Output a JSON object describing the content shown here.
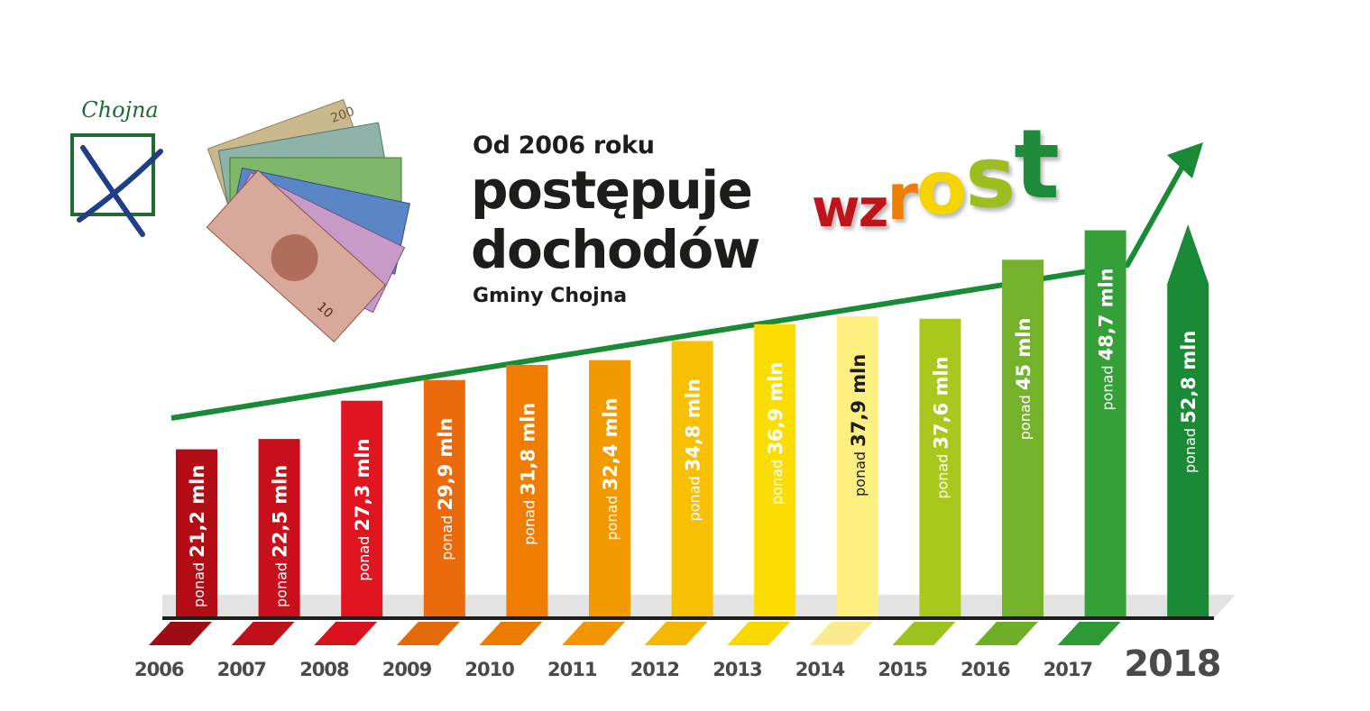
{
  "logo": {
    "text": "Chojna"
  },
  "heading": {
    "line1": "Od 2006 roku",
    "line2": "postępuje",
    "line3": "dochodów",
    "line4": "Gminy Chojna",
    "highlight_letters": [
      {
        "char": "w",
        "color": "#c0141b"
      },
      {
        "char": "z",
        "color": "#c0141b"
      },
      {
        "char": "r",
        "color": "#ef7d00"
      },
      {
        "char": "o",
        "color": "#f5d400"
      },
      {
        "char": "s",
        "color": "#9dbe1e"
      },
      {
        "char": "t",
        "color": "#1e8a3a"
      }
    ]
  },
  "chart_data": {
    "type": "bar",
    "categories": [
      "2006",
      "2007",
      "2008",
      "2009",
      "2010",
      "2011",
      "2012",
      "2013",
      "2014",
      "2015",
      "2016",
      "2017",
      "2018"
    ],
    "values": [
      21.2,
      22.5,
      27.3,
      29.9,
      31.8,
      32.4,
      34.8,
      36.9,
      37.9,
      37.6,
      45,
      48.7,
      52.8
    ],
    "value_prefix": "ponad",
    "value_labels": [
      "21,2 mln",
      "22,5 mln",
      "27,3 mln",
      "29,9 mln",
      "31,8 mln",
      "32,4 mln",
      "34,8 mln",
      "36,9 mln",
      "37,9 mln",
      "37,6 mln",
      "45 mln",
      "48,7 mln",
      "52,8 mln"
    ],
    "colors": [
      "#b20d15",
      "#c8101c",
      "#e2141f",
      "#ea6a0c",
      "#ef7d00",
      "#f39a00",
      "#f7c000",
      "#fbde00",
      "#fdf081",
      "#a9c81e",
      "#74b22b",
      "#36a038",
      "#1a8a36"
    ],
    "base_colors": [
      "#9e0b12",
      "#c0111a",
      "#d8121e",
      "#e26a0a",
      "#ec7c00",
      "#f19500",
      "#f5b800",
      "#f9d800",
      "#fbeb8e",
      "#9cc41c",
      "#6fae29",
      "#2f9a35"
    ],
    "arrow_color": "#1a8a36",
    "trend_color": "#1a8a36",
    "highlight_last": true,
    "ylim": [
      0,
      60
    ]
  }
}
